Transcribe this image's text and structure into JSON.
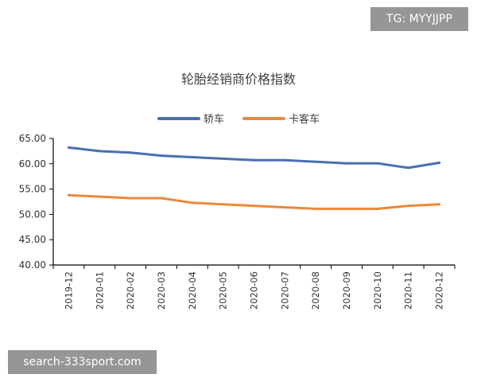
{
  "watermark_top": "TG: MYYJJPP",
  "watermark_bottom": "search-333sport.com",
  "chart_data": {
    "type": "line",
    "title": "轮胎经销商价格指数",
    "xlabel": "",
    "ylabel": "",
    "categories": [
      "2019-12",
      "2020-01",
      "2020-02",
      "2020-03",
      "2020-04",
      "2020-05",
      "2020-06",
      "2020-07",
      "2020-08",
      "2020-09",
      "2020-10",
      "2020-11",
      "2020-12"
    ],
    "ylim": [
      40,
      65
    ],
    "yticks": [
      "40.00",
      "45.00",
      "50.00",
      "55.00",
      "60.00",
      "65.00"
    ],
    "grid": false,
    "legend_position": "top-center",
    "series": [
      {
        "name": "轿车",
        "color": "#4a6fb0",
        "values": [
          63.2,
          62.5,
          62.2,
          61.6,
          61.3,
          61.0,
          60.7,
          60.7,
          60.4,
          60.1,
          60.1,
          59.2,
          60.2
        ]
      },
      {
        "name": "卡客车",
        "color": "#e98a3c",
        "values": [
          53.8,
          53.5,
          53.2,
          53.2,
          52.3,
          52.0,
          51.7,
          51.4,
          51.1,
          51.1,
          51.1,
          51.7,
          52.0
        ]
      }
    ]
  }
}
